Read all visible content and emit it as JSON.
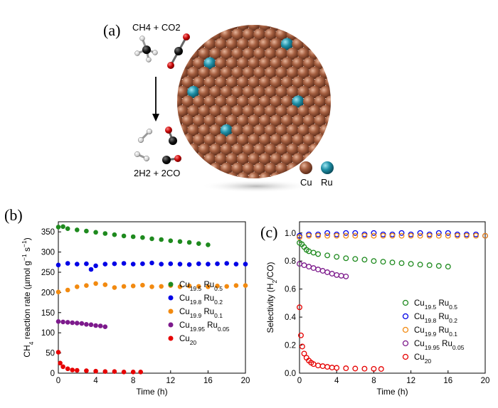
{
  "panel_labels": {
    "a": "(a)",
    "b": "(b)",
    "c": "(c)"
  },
  "scheme": {
    "reactants": "CH4 + CO2",
    "products": "2H2 + 2CO",
    "legend": [
      {
        "name": "Cu",
        "color": "#9a5538"
      },
      {
        "name": "Ru",
        "color": "#1f8fa6"
      }
    ]
  },
  "chart_data": [
    {
      "type": "scatter",
      "panel": "(b)",
      "xlabel": "Time (h)",
      "ylabel": "CH4 reaction rate (µmol g⁻¹ s⁻¹)",
      "xlim": [
        0,
        20
      ],
      "ylim": [
        0,
        375
      ],
      "xticks": [
        0,
        4,
        8,
        12,
        16,
        20
      ],
      "yticks": [
        0,
        50,
        100,
        150,
        200,
        250,
        300,
        350
      ],
      "marker": "filled",
      "legend_position": "center-right",
      "series": [
        {
          "name": "Cu19.5Ru0.5",
          "color": "#1e8a1e",
          "x": [
            0,
            0.5,
            1,
            2,
            3,
            4,
            5,
            6,
            7,
            8,
            9,
            10,
            11,
            12,
            13,
            14,
            15,
            16
          ],
          "y": [
            362,
            363,
            358,
            355,
            352,
            349,
            346,
            343,
            340,
            338,
            336,
            333,
            331,
            328,
            326,
            324,
            321,
            318
          ]
        },
        {
          "name": "Cu19.8Ru0.2",
          "color": "#0000e6",
          "x": [
            0,
            1,
            2,
            3,
            3.5,
            4,
            5,
            6,
            7,
            8,
            9,
            10,
            11,
            12,
            13,
            14,
            15,
            16,
            17,
            18,
            19,
            20
          ],
          "y": [
            268,
            272,
            270,
            271,
            257,
            266,
            270,
            271,
            272,
            270,
            271,
            273,
            270,
            271,
            270,
            269,
            271,
            270,
            271,
            272,
            270,
            270
          ]
        },
        {
          "name": "Cu19.9Ru0.1",
          "color": "#f28a10",
          "x": [
            0,
            1,
            2,
            3,
            4,
            5,
            6,
            7,
            8,
            9,
            10,
            11,
            12,
            13,
            14,
            15,
            16,
            17,
            18,
            19,
            20
          ],
          "y": [
            201,
            206,
            214,
            217,
            222,
            219,
            212,
            215,
            216,
            218,
            214,
            215,
            217,
            214,
            216,
            215,
            214,
            216,
            215,
            217,
            217
          ]
        },
        {
          "name": "Cu19.95Ru0.05",
          "color": "#7d1a8c",
          "x": [
            0,
            0.5,
            1,
            1.5,
            2,
            2.5,
            3,
            3.5,
            4,
            4.5,
            5
          ],
          "y": [
            128,
            127,
            126,
            125,
            124,
            123,
            121,
            120,
            118,
            117,
            115
          ]
        },
        {
          "name": "Cu20",
          "color": "#e60000",
          "x": [
            0,
            0.2,
            0.5,
            1,
            1.5,
            2,
            3,
            4,
            5,
            6,
            7,
            8,
            8.8
          ],
          "y": [
            52,
            25,
            16,
            11,
            8,
            7,
            6,
            5,
            4,
            4,
            3,
            3,
            3
          ]
        }
      ]
    },
    {
      "type": "scatter",
      "panel": "(c)",
      "xlabel": "Time (h)",
      "ylabel": "Selectivity (H2/CO)",
      "xlim": [
        0,
        20
      ],
      "ylim": [
        0,
        1.08
      ],
      "xticks": [
        0,
        4,
        8,
        12,
        16,
        20
      ],
      "yticks": [
        0.0,
        0.2,
        0.4,
        0.6,
        0.8,
        1.0
      ],
      "marker": "open",
      "legend_position": "lower-right",
      "series": [
        {
          "name": "Cu19.5Ru0.5",
          "color": "#1e8a1e",
          "x": [
            0,
            0.25,
            0.5,
            0.75,
            1,
            1.5,
            2,
            3,
            4,
            5,
            6,
            7,
            8,
            9,
            10,
            11,
            12,
            13,
            14,
            15,
            16
          ],
          "y": [
            0.93,
            0.92,
            0.9,
            0.88,
            0.87,
            0.86,
            0.85,
            0.84,
            0.83,
            0.82,
            0.815,
            0.81,
            0.8,
            0.795,
            0.79,
            0.785,
            0.78,
            0.775,
            0.77,
            0.765,
            0.76
          ]
        },
        {
          "name": "Cu19.8Ru0.2",
          "color": "#0000e6",
          "x": [
            0,
            1,
            2,
            3,
            4,
            5,
            6,
            7,
            8,
            9,
            10,
            11,
            12,
            13,
            14,
            15,
            16,
            17,
            18,
            19,
            20
          ],
          "y": [
            0.98,
            0.99,
            0.99,
            1.0,
            0.99,
            1.0,
            1.0,
            0.99,
            1.0,
            0.99,
            0.99,
            1.0,
            0.99,
            1.0,
            0.99,
            1.0,
            1.0,
            0.99,
            0.99,
            0.99,
            0.98
          ]
        },
        {
          "name": "Cu19.9Ru0.1",
          "color": "#f28a10",
          "x": [
            0,
            1,
            2,
            3,
            4,
            5,
            6,
            7,
            8,
            9,
            10,
            11,
            12,
            13,
            14,
            15,
            16,
            17,
            18,
            19,
            20
          ],
          "y": [
            0.97,
            0.98,
            0.98,
            0.98,
            0.98,
            0.98,
            0.98,
            0.98,
            0.98,
            0.98,
            0.98,
            0.98,
            0.98,
            0.98,
            0.98,
            0.98,
            0.98,
            0.98,
            0.98,
            0.98,
            0.98
          ]
        },
        {
          "name": "Cu19.95Ru0.05",
          "color": "#7d1a8c",
          "x": [
            0,
            0.5,
            1,
            1.5,
            2,
            2.5,
            3,
            3.5,
            4,
            4.5,
            5
          ],
          "y": [
            0.78,
            0.77,
            0.76,
            0.75,
            0.74,
            0.73,
            0.72,
            0.71,
            0.7,
            0.695,
            0.69
          ]
        },
        {
          "name": "Cu20",
          "color": "#e60000",
          "x": [
            0,
            0.15,
            0.3,
            0.5,
            0.75,
            1,
            1.25,
            1.5,
            2,
            2.5,
            3,
            3.5,
            4,
            5,
            6,
            7,
            8,
            8.8
          ],
          "y": [
            0.47,
            0.27,
            0.19,
            0.14,
            0.11,
            0.09,
            0.075,
            0.065,
            0.055,
            0.05,
            0.045,
            0.04,
            0.038,
            0.035,
            0.033,
            0.032,
            0.031,
            0.03
          ]
        }
      ]
    }
  ]
}
